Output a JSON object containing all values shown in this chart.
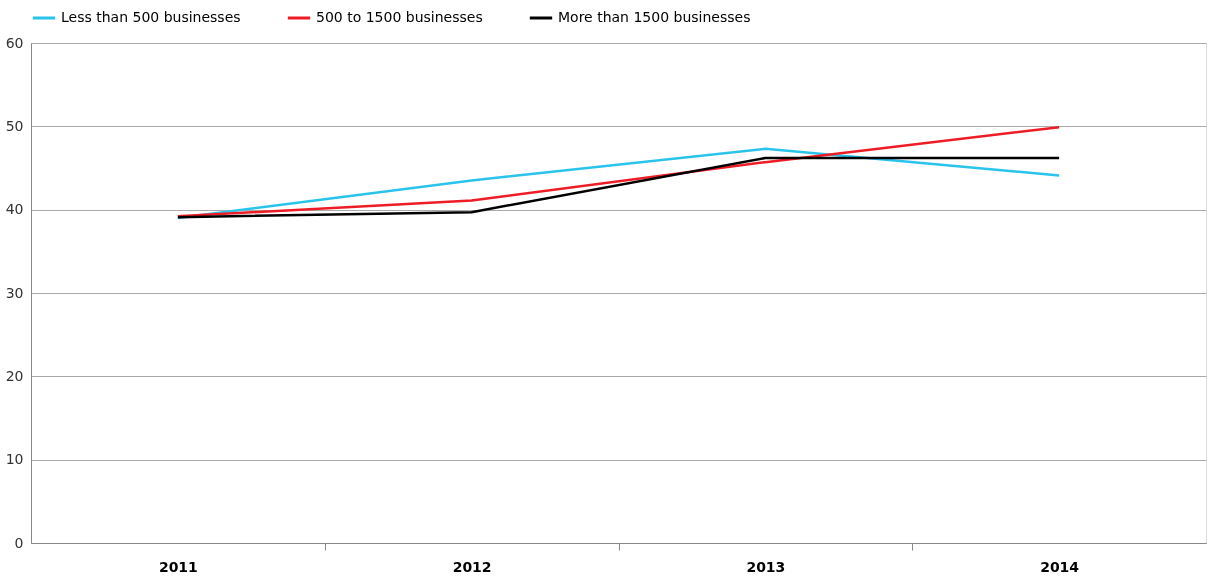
{
  "chart_data": {
    "type": "line",
    "categories": [
      "2011",
      "2012",
      "2013",
      "2014"
    ],
    "series": [
      {
        "name": "Less than 500 businesses",
        "color": "#29c3ec",
        "values": [
          39.0,
          43.5,
          47.3,
          44.1
        ]
      },
      {
        "name": "500 to 1500 businesses",
        "color": "#ee1c25",
        "values": [
          39.2,
          41.1,
          45.7,
          49.9
        ]
      },
      {
        "name": "More than 1500 businesses",
        "color": "#000000",
        "values": [
          39.1,
          39.7,
          46.2,
          46.2
        ]
      }
    ],
    "ylim": [
      0,
      60
    ],
    "yticks": [
      0,
      10,
      20,
      30,
      40,
      50,
      60
    ],
    "grid": "y",
    "legend": "top",
    "marker": "none",
    "line_style": "solid"
  }
}
